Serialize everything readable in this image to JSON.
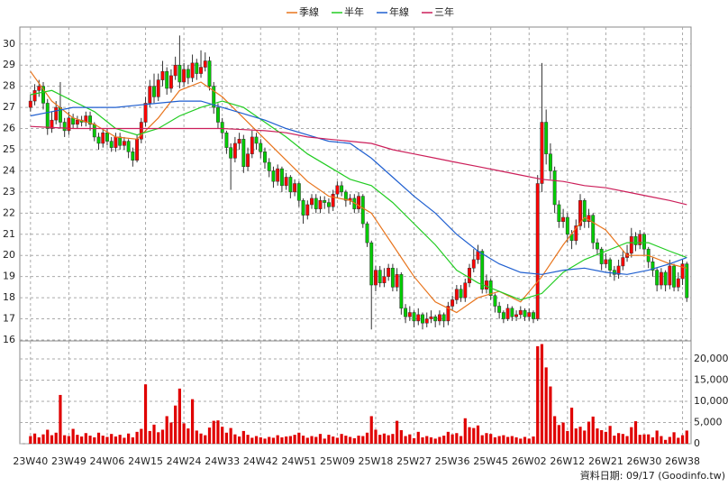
{
  "chart_data": [
    {
      "type": "candlestick",
      "legend": "top",
      "grid": true,
      "up_color": "#ff0000",
      "down_color": "#00cc00",
      "xlim": [
        -2.5,
        155
      ],
      "xticks": [
        {
          "value": 0,
          "label": "23W40"
        },
        {
          "value": 9,
          "label": "23W49"
        },
        {
          "value": 18,
          "label": "24W06"
        },
        {
          "value": 27,
          "label": "24W15"
        },
        {
          "value": 36,
          "label": "24W24"
        },
        {
          "value": 45,
          "label": "24W33"
        },
        {
          "value": 54,
          "label": "24W42"
        },
        {
          "value": 63,
          "label": "24W51"
        },
        {
          "value": 72,
          "label": "25W09"
        },
        {
          "value": 81,
          "label": "25W18"
        },
        {
          "value": 90,
          "label": "25W27"
        },
        {
          "value": 99,
          "label": "25W36"
        },
        {
          "value": 108,
          "label": "25W45"
        },
        {
          "value": 117,
          "label": "26W02"
        },
        {
          "value": 126,
          "label": "26W12"
        },
        {
          "value": 135,
          "label": "26W21"
        },
        {
          "value": 144,
          "label": "26W30"
        },
        {
          "value": 153,
          "label": "26W38"
        }
      ],
      "ylim": [
        16,
        30.8
      ],
      "yticks": [
        16,
        17,
        18,
        19,
        20,
        21,
        22,
        23,
        24,
        25,
        26,
        27,
        28,
        29,
        30
      ],
      "open": [
        27.0,
        27.3,
        27.8,
        28.0,
        27.2,
        26.0,
        26.4,
        27.0,
        26.3,
        25.9,
        26.5,
        26.2,
        26.4,
        26.3,
        26.6,
        26.2,
        25.6,
        25.3,
        25.8,
        25.4,
        25.1,
        25.6,
        25.2,
        25.4,
        24.9,
        24.5,
        25.5,
        26.3,
        27.2,
        28.0,
        27.5,
        28.3,
        28.7,
        27.9,
        28.5,
        29.0,
        28.2,
        28.8,
        28.4,
        29.1,
        28.6,
        28.9,
        29.2,
        28.0,
        27.0,
        26.3,
        25.8,
        25.1,
        24.6,
        25.3,
        25.5,
        24.2,
        24.8,
        25.6,
        25.3,
        24.9,
        24.4,
        24.0,
        23.5,
        24.1,
        23.3,
        23.7,
        23.0,
        23.4,
        22.6,
        21.9,
        22.4,
        22.7,
        22.2,
        22.6,
        22.5,
        22.3,
        22.9,
        23.3,
        23.0,
        22.6,
        22.7,
        22.2,
        22.8,
        21.5,
        20.6,
        18.6,
        19.3,
        18.7,
        19.0,
        19.4,
        18.5,
        19.1,
        17.5,
        17.1,
        17.3,
        16.9,
        17.2,
        16.8,
        17.0,
        17.1,
        16.9,
        17.2,
        16.9,
        17.6,
        17.9,
        18.4,
        18.0,
        18.7,
        19.4,
        19.8,
        20.2,
        18.4,
        18.8,
        18.1,
        17.6,
        17.3,
        17.0,
        17.5,
        17.1,
        17.2,
        17.4,
        17.1,
        17.3,
        17.0,
        23.4,
        26.3,
        24.8,
        24.0,
        22.4,
        21.6,
        21.8,
        21.0,
        20.7,
        21.4,
        22.6,
        21.6,
        21.9,
        20.6,
        20.3,
        19.6,
        19.8,
        19.3,
        19.1,
        19.5,
        19.9,
        20.1,
        20.9,
        20.5,
        21.0,
        20.3,
        19.7,
        19.3,
        18.6,
        19.2,
        18.6,
        19.5,
        18.5,
        18.9,
        19.6
      ],
      "high": [
        27.6,
        28.1,
        28.3,
        28.2,
        27.4,
        26.8,
        27.3,
        28.2,
        26.5,
        26.8,
        26.7,
        26.6,
        26.6,
        26.8,
        26.8,
        26.3,
        25.8,
        26.0,
        26.0,
        25.6,
        25.8,
        25.8,
        25.6,
        25.5,
        25.1,
        25.7,
        26.5,
        27.5,
        28.3,
        28.6,
        28.6,
        29.2,
        28.9,
        28.8,
        29.4,
        30.4,
        29.1,
        29.0,
        29.5,
        29.3,
        29.7,
        29.6,
        29.4,
        28.2,
        27.2,
        26.5,
        25.9,
        25.3,
        25.6,
        25.8,
        25.7,
        25.1,
        25.9,
        25.8,
        25.5,
        25.1,
        24.6,
        24.2,
        24.3,
        24.2,
        23.9,
        23.8,
        23.6,
        23.5,
        22.7,
        22.6,
        22.9,
        22.9,
        22.8,
        22.8,
        22.7,
        23.1,
        23.5,
        23.5,
        23.1,
        22.9,
        22.9,
        23.0,
        22.9,
        21.6,
        20.7,
        19.5,
        19.5,
        19.4,
        19.6,
        19.6,
        19.4,
        19.2,
        17.7,
        17.6,
        17.4,
        17.5,
        17.3,
        17.3,
        17.4,
        17.2,
        17.4,
        17.3,
        17.8,
        18.1,
        18.6,
        18.6,
        18.9,
        19.6,
        20.3,
        20.5,
        20.3,
        19.1,
        18.9,
        18.2,
        17.8,
        17.4,
        17.7,
        17.6,
        17.4,
        17.6,
        17.5,
        17.5,
        17.4,
        23.8,
        29.1,
        26.9,
        25.3,
        24.2,
        22.6,
        22.2,
        22.0,
        21.2,
        21.7,
        22.9,
        22.7,
        22.2,
        22.0,
        20.8,
        20.4,
        20.1,
        19.9,
        19.5,
        19.8,
        20.2,
        20.5,
        21.3,
        21.1,
        21.2,
        21.1,
        20.4,
        19.9,
        19.4,
        19.4,
        19.3,
        19.8,
        19.6,
        19.2,
        19.8,
        19.7
      ],
      "low": [
        26.8,
        27.1,
        27.5,
        26.9,
        25.7,
        25.8,
        26.2,
        26.0,
        25.6,
        25.7,
        26.0,
        26.0,
        26.1,
        26.1,
        25.9,
        25.4,
        25.0,
        25.1,
        25.2,
        24.9,
        24.9,
        25.0,
        25.0,
        24.6,
        24.2,
        24.4,
        25.3,
        26.1,
        27.0,
        27.2,
        27.3,
        28.0,
        27.6,
        27.7,
        28.3,
        27.9,
        28.0,
        28.1,
        28.2,
        28.3,
        28.4,
        28.7,
        27.8,
        26.7,
        26.0,
        25.5,
        24.8,
        23.1,
        24.4,
        25.0,
        23.9,
        24.0,
        24.6,
        25.0,
        24.6,
        24.1,
        23.7,
        23.2,
        23.3,
        23.0,
        23.1,
        22.7,
        22.8,
        22.3,
        21.5,
        21.7,
        22.2,
        22.0,
        22.0,
        22.2,
        22.0,
        22.1,
        22.7,
        22.8,
        22.3,
        22.4,
        22.0,
        22.0,
        21.3,
        20.4,
        16.5,
        18.3,
        18.5,
        18.5,
        18.8,
        18.3,
        18.3,
        17.2,
        16.8,
        16.9,
        16.6,
        16.7,
        16.5,
        16.6,
        16.8,
        16.6,
        16.7,
        16.6,
        16.7,
        17.4,
        17.7,
        17.8,
        17.8,
        18.5,
        19.2,
        19.6,
        18.2,
        18.2,
        17.9,
        17.3,
        17.0,
        16.8,
        16.9,
        16.9,
        16.9,
        17.0,
        16.9,
        16.9,
        16.8,
        16.9,
        23.0,
        24.3,
        23.6,
        22.0,
        21.3,
        21.3,
        20.6,
        20.3,
        20.5,
        21.2,
        21.3,
        21.3,
        20.3,
        20.0,
        19.3,
        19.4,
        19.0,
        18.8,
        18.9,
        19.3,
        19.7,
        19.9,
        20.2,
        20.3,
        20.0,
        19.4,
        19.0,
        18.3,
        18.4,
        18.3,
        18.4,
        18.3,
        18.3,
        18.6,
        17.8
      ],
      "close": [
        27.3,
        27.8,
        28.0,
        27.2,
        26.0,
        26.4,
        27.0,
        26.3,
        25.9,
        26.5,
        26.2,
        26.4,
        26.3,
        26.6,
        26.2,
        25.6,
        25.3,
        25.8,
        25.4,
        25.1,
        25.6,
        25.2,
        25.4,
        24.9,
        24.5,
        25.5,
        26.3,
        27.2,
        28.0,
        27.5,
        28.3,
        28.7,
        27.9,
        28.5,
        29.0,
        28.2,
        28.8,
        28.4,
        29.1,
        28.6,
        28.9,
        29.2,
        28.0,
        27.0,
        26.3,
        25.8,
        25.1,
        24.6,
        25.3,
        25.5,
        24.2,
        24.8,
        25.6,
        25.3,
        24.9,
        24.4,
        24.0,
        23.5,
        24.1,
        23.3,
        23.7,
        23.0,
        23.4,
        22.6,
        21.9,
        22.4,
        22.7,
        22.2,
        22.6,
        22.5,
        22.3,
        22.9,
        23.3,
        23.0,
        22.6,
        22.7,
        22.2,
        22.8,
        21.5,
        20.6,
        18.6,
        19.3,
        18.7,
        19.0,
        19.4,
        18.5,
        19.1,
        17.5,
        17.1,
        17.3,
        16.9,
        17.2,
        16.8,
        17.0,
        17.1,
        16.9,
        17.2,
        16.9,
        17.6,
        17.9,
        18.4,
        18.0,
        18.7,
        19.4,
        19.8,
        20.2,
        18.4,
        18.8,
        18.1,
        17.6,
        17.3,
        17.0,
        17.5,
        17.1,
        17.2,
        17.4,
        17.1,
        17.3,
        17.0,
        23.4,
        26.3,
        24.8,
        24.0,
        22.4,
        21.6,
        21.8,
        21.0,
        20.7,
        21.4,
        22.6,
        21.6,
        21.9,
        20.6,
        20.3,
        19.6,
        19.8,
        19.3,
        19.1,
        19.5,
        19.9,
        20.1,
        20.9,
        20.5,
        21.0,
        20.3,
        19.7,
        19.3,
        18.6,
        19.2,
        18.6,
        19.5,
        18.5,
        18.9,
        19.6,
        18.0
      ],
      "ma_x": [
        0,
        5,
        10,
        15,
        20,
        25,
        30,
        35,
        40,
        45,
        50,
        55,
        60,
        65,
        70,
        75,
        80,
        85,
        90,
        95,
        100,
        105,
        110,
        115,
        120,
        125,
        130,
        135,
        140,
        145,
        150,
        154
      ],
      "series": [
        {
          "name": "季線",
          "color": "#e8741c",
          "values": [
            28.7,
            27.3,
            26.5,
            26.2,
            25.6,
            25.5,
            26.5,
            27.8,
            28.2,
            27.5,
            26.5,
            25.5,
            24.5,
            23.5,
            22.8,
            22.6,
            22.0,
            20.5,
            19.0,
            17.8,
            17.3,
            18.0,
            18.3,
            17.8,
            19.0,
            20.5,
            21.8,
            21.2,
            20.0,
            20.0,
            19.6,
            19.4
          ]
        },
        {
          "name": "半年",
          "color": "#22cc22",
          "values": [
            27.6,
            27.8,
            27.3,
            26.8,
            26.0,
            25.7,
            26.0,
            26.6,
            27.0,
            27.3,
            27.0,
            26.3,
            25.6,
            24.8,
            24.2,
            23.6,
            23.3,
            22.5,
            21.5,
            20.5,
            19.3,
            18.7,
            18.3,
            17.9,
            18.2,
            19.2,
            19.8,
            20.2,
            20.6,
            20.6,
            20.2,
            19.9
          ]
        },
        {
          "name": "年線",
          "color": "#1f5fd0",
          "values": [
            26.6,
            26.8,
            27.0,
            27.0,
            27.0,
            27.1,
            27.2,
            27.3,
            27.3,
            27.0,
            26.7,
            26.4,
            26.0,
            25.7,
            25.4,
            25.3,
            24.6,
            23.7,
            22.8,
            22.0,
            21.0,
            20.2,
            19.6,
            19.2,
            19.1,
            19.3,
            19.4,
            19.2,
            19.1,
            19.3,
            19.6,
            19.9
          ]
        },
        {
          "name": "三年",
          "color": "#cc1f5a",
          "values": [
            26.1,
            26.05,
            26.0,
            26.0,
            26.0,
            26.0,
            26.0,
            26.0,
            26.0,
            26.0,
            25.95,
            25.9,
            25.8,
            25.6,
            25.5,
            25.4,
            25.3,
            25.0,
            24.8,
            24.6,
            24.4,
            24.2,
            24.0,
            23.8,
            23.6,
            23.5,
            23.3,
            23.2,
            23.0,
            22.8,
            22.6,
            22.4
          ]
        }
      ]
    },
    {
      "type": "bar",
      "color": "#e00000",
      "grid": true,
      "ylim": [
        0,
        24250
      ],
      "yticks": [
        0,
        {
          "value": 5000,
          "label": "5,000"
        },
        {
          "value": 10000,
          "label": "10,000"
        },
        {
          "value": 15000,
          "label": "15,000"
        },
        {
          "value": 20000,
          "label": "20,000"
        }
      ],
      "values": [
        1800,
        2400,
        1500,
        2200,
        3300,
        2000,
        2600,
        11500,
        2000,
        1800,
        3500,
        2100,
        1700,
        2500,
        1900,
        1500,
        2600,
        1900,
        1600,
        2300,
        1700,
        2100,
        1400,
        2400,
        1500,
        2800,
        3500,
        14000,
        3000,
        4500,
        2700,
        3300,
        6500,
        5000,
        9000,
        13000,
        4800,
        3600,
        10500,
        3100,
        2400,
        2000,
        3800,
        5400,
        5500,
        4000,
        2600,
        3700,
        2200,
        1700,
        3000,
        2100,
        1400,
        1800,
        1500,
        1200,
        1600,
        1400,
        2000,
        1500,
        1700,
        1800,
        2100,
        2600,
        1900,
        1400,
        1800,
        1600,
        2300,
        1200,
        2100,
        1700,
        1400,
        2300,
        1900,
        1600,
        1300,
        1900,
        1800,
        2600,
        6500,
        3300,
        2100,
        2400,
        2000,
        2300,
        5400,
        3200,
        1800,
        2200,
        1300,
        2800,
        1500,
        1800,
        1500,
        1200,
        1600,
        1900,
        2800,
        2200,
        2500,
        1800,
        6000,
        3900,
        3700,
        4300,
        2000,
        2500,
        2300,
        1500,
        1800,
        2000,
        1600,
        1800,
        1500,
        1200,
        1600,
        1200,
        1700,
        23000,
        23500,
        18000,
        13500,
        6500,
        4400,
        5000,
        3000,
        8500,
        3600,
        4000,
        3100,
        5200,
        6400,
        3600,
        3200,
        2800,
        4200,
        1900,
        2500,
        2300,
        1800,
        3900,
        5300,
        2100,
        2200,
        2200,
        1500,
        3100,
        1800,
        900,
        1600,
        2700,
        1400,
        2000,
        3100
      ]
    }
  ],
  "footer": "資料日期: 09/17 (Goodinfo.tw)"
}
